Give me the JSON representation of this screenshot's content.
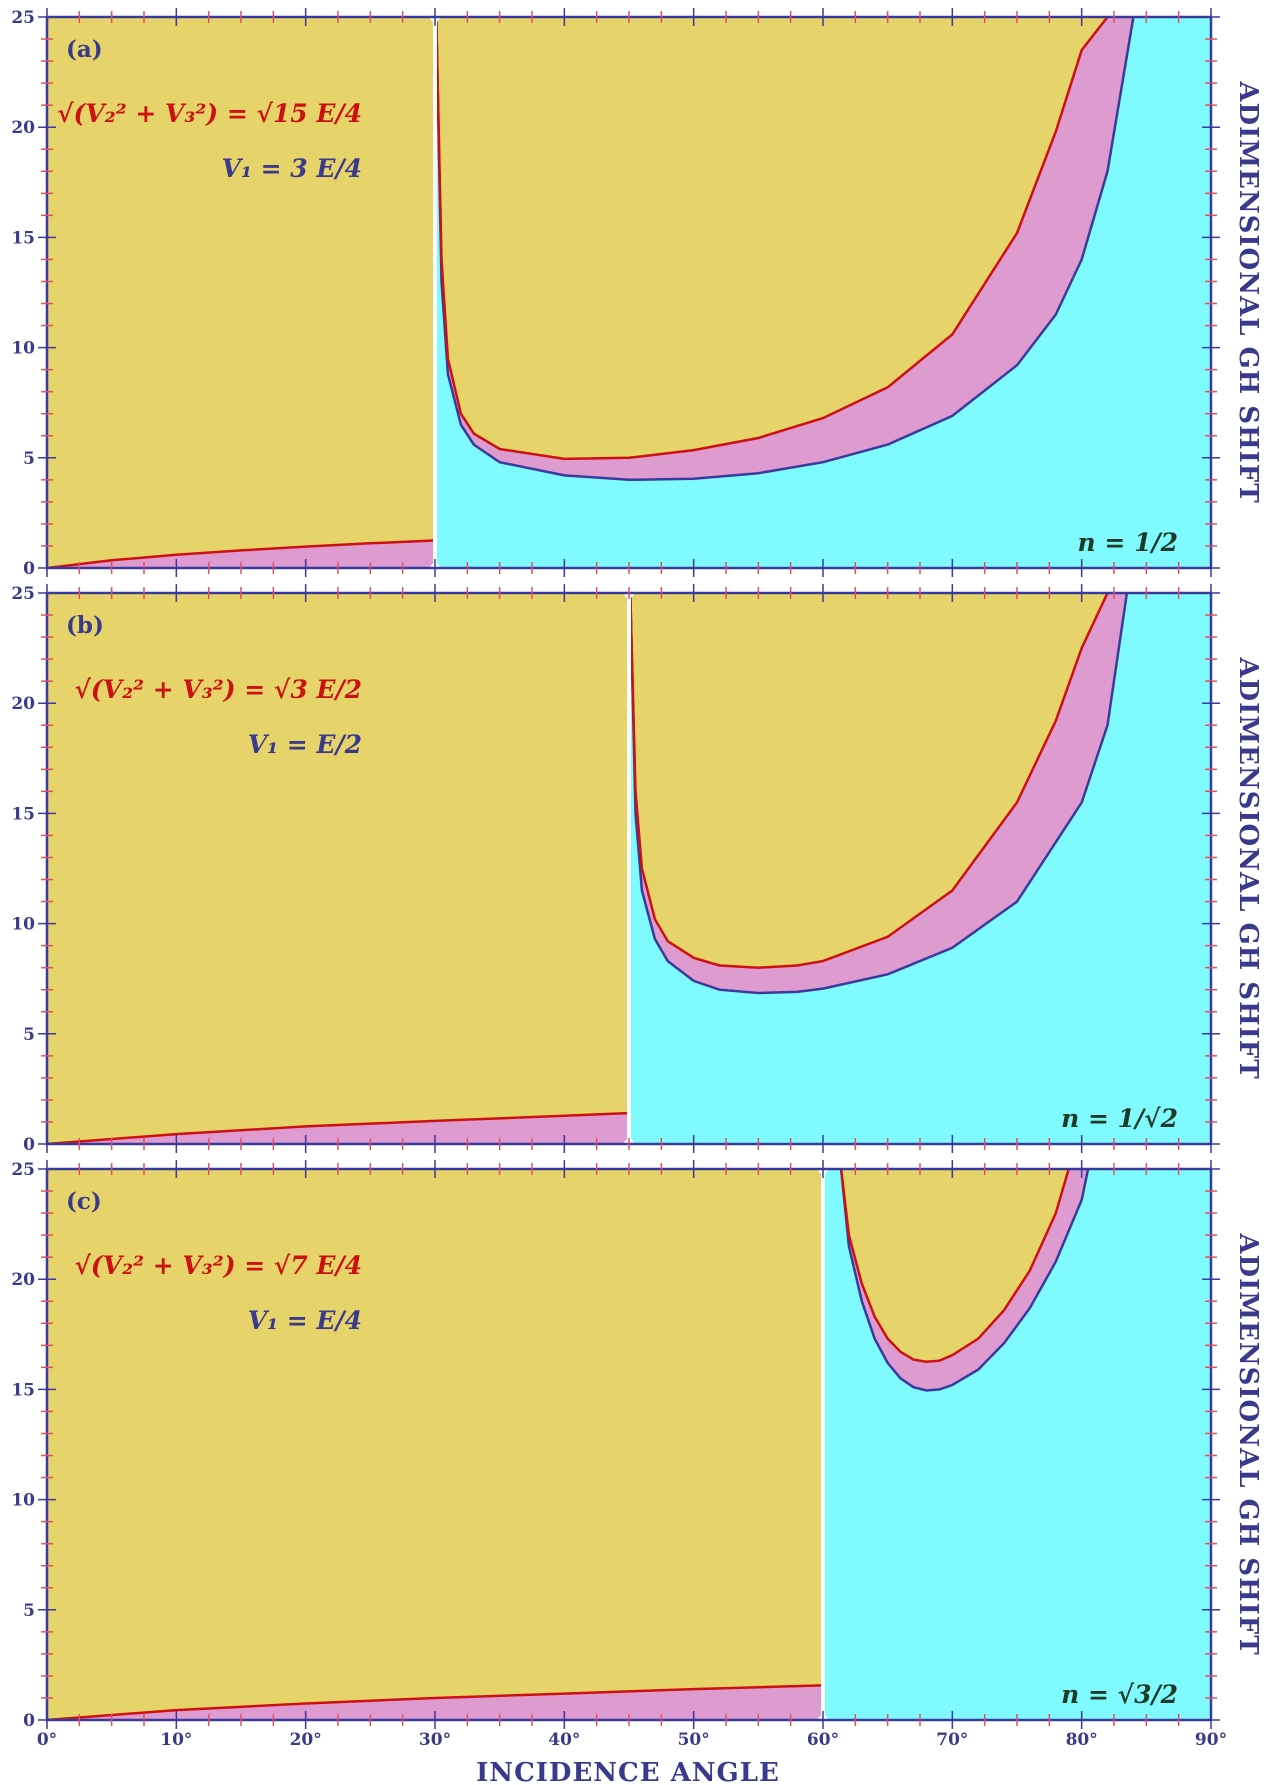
{
  "x_axis_title": "INCIDENCE ANGLE",
  "y_axis_title": "ADIMENSIONAL GH SHIFT",
  "x_tick_labels": [
    "0°",
    "10°",
    "20°",
    "30°",
    "40°",
    "50°",
    "60°",
    "70°",
    "80°",
    "90°"
  ],
  "y_tick_labels": [
    "0",
    "5",
    "10",
    "15",
    "20",
    "25"
  ],
  "colors": {
    "yellow_region": "#e6d46a",
    "pink_region": "#dd9bd0",
    "cyan_region": "#7ffbff",
    "red_curve": "#cc1111",
    "blue_curve": "#3a3a9c",
    "axis": "#3a3a9c",
    "critical_line": "#ffffff"
  },
  "panels": [
    {
      "tag": "(a)",
      "red_formula": "√(V₂² + V₃²) = √15 E/4",
      "blue_formula": "V₁ = 3 E/4",
      "n_label": "n = 1/2"
    },
    {
      "tag": "(b)",
      "red_formula": "√(V₂² + V₃²) = √3 E/2",
      "blue_formula": "V₁ = E/2",
      "n_label": "n = 1/√2"
    },
    {
      "tag": "(c)",
      "red_formula": "√(V₂² + V₃²) = √7 E/4",
      "blue_formula": "V₁ = E/4",
      "n_label": "n = √3/2"
    }
  ],
  "chart_data": [
    {
      "type": "area",
      "panel": "(a)",
      "xlim": [
        0,
        90
      ],
      "ylim": [
        0,
        25
      ],
      "grid": false,
      "critical_angle": 30,
      "series": [
        {
          "x": [
            0,
            5,
            10,
            15,
            20,
            25,
            29.9
          ],
          "values": [
            0,
            0.35,
            0.6,
            0.8,
            0.97,
            1.12,
            1.25
          ]
        },
        {
          "x": [
            30.1,
            30.5,
            31,
            32,
            33,
            35,
            40,
            45,
            50,
            55,
            60,
            65,
            70,
            75,
            78,
            80,
            82
          ],
          "values": [
            25,
            14,
            9.5,
            7,
            6.1,
            5.4,
            4.95,
            5.0,
            5.35,
            5.9,
            6.8,
            8.2,
            10.6,
            15.2,
            19.8,
            23.5,
            25
          ]
        },
        {
          "x": [
            30.1,
            30.5,
            31,
            32,
            33,
            35,
            40,
            45,
            50,
            55,
            60,
            65,
            70,
            75,
            78,
            80,
            82,
            84
          ],
          "values": [
            25,
            13,
            8.8,
            6.5,
            5.6,
            4.8,
            4.2,
            4.0,
            4.05,
            4.3,
            4.8,
            5.6,
            6.9,
            9.2,
            11.5,
            14,
            18,
            25
          ]
        }
      ]
    },
    {
      "type": "area",
      "panel": "(b)",
      "xlim": [
        0,
        90
      ],
      "ylim": [
        0,
        25
      ],
      "grid": false,
      "critical_angle": 45,
      "series": [
        {
          "x": [
            0,
            10,
            20,
            30,
            40,
            44.9
          ],
          "values": [
            0,
            0.45,
            0.8,
            1.05,
            1.28,
            1.4
          ]
        },
        {
          "x": [
            45.1,
            45.5,
            46,
            47,
            48,
            50,
            52,
            55,
            58,
            60,
            65,
            70,
            75,
            78,
            80,
            82
          ],
          "values": [
            25,
            16,
            12.5,
            10.2,
            9.2,
            8.45,
            8.1,
            8.0,
            8.1,
            8.3,
            9.4,
            11.5,
            15.5,
            19.2,
            22.5,
            25
          ]
        },
        {
          "x": [
            45.1,
            45.5,
            46,
            47,
            48,
            50,
            52,
            55,
            58,
            60,
            65,
            70,
            75,
            80,
            82,
            83.5
          ],
          "values": [
            25,
            15,
            11.5,
            9.3,
            8.3,
            7.4,
            7.0,
            6.85,
            6.9,
            7.05,
            7.7,
            8.9,
            11,
            15.5,
            19,
            25
          ]
        }
      ]
    },
    {
      "type": "area",
      "panel": "(c)",
      "xlim": [
        0,
        90
      ],
      "ylim": [
        0,
        25
      ],
      "grid": false,
      "critical_angle": 60,
      "series": [
        {
          "x": [
            0,
            10,
            20,
            30,
            40,
            50,
            59.9
          ],
          "values": [
            0,
            0.45,
            0.75,
            1.0,
            1.2,
            1.4,
            1.57
          ]
        },
        {
          "x": [
            61.4,
            62,
            63,
            64,
            65,
            66,
            67,
            68,
            69,
            70,
            72,
            74,
            76,
            78,
            79
          ],
          "values": [
            25,
            22,
            19.8,
            18.3,
            17.3,
            16.7,
            16.35,
            16.25,
            16.3,
            16.55,
            17.3,
            18.6,
            20.4,
            23,
            25
          ]
        },
        {
          "x": [
            61.4,
            62,
            63,
            64,
            65,
            66,
            67,
            68,
            69,
            70,
            72,
            74,
            76,
            78,
            80,
            80.5
          ],
          "values": [
            25,
            21.5,
            19,
            17.3,
            16.2,
            15.5,
            15.1,
            14.95,
            15.0,
            15.2,
            15.9,
            17.1,
            18.7,
            20.8,
            23.6,
            25
          ]
        }
      ]
    }
  ]
}
